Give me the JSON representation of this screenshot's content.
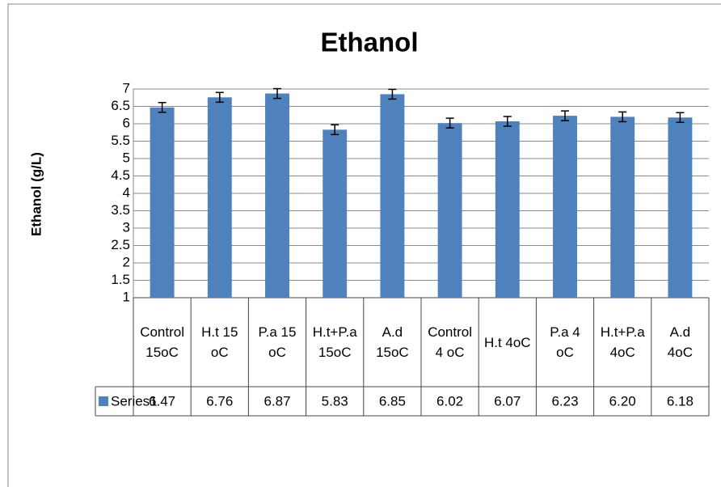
{
  "chart_data": {
    "type": "bar",
    "title": "Ethanol",
    "y_label": "Ethanol (g/L)",
    "categories": [
      "Control 15oC",
      "H.t 15 oC",
      "P.a 15 oC",
      "H.t+P.a 15oC",
      "A.d 15oC",
      "Control 4 oC",
      "H.t 4oC",
      "P.a 4 oC",
      "H.t+P.a 4oC",
      "A.d 4oC"
    ],
    "series": [
      {
        "name": "Series1",
        "color": "#4f81bd",
        "values": [
          6.47,
          6.76,
          6.87,
          5.83,
          6.85,
          6.02,
          6.07,
          6.23,
          6.2,
          6.18
        ],
        "value_labels": [
          "6.47",
          "6.76",
          "6.87",
          "5.83",
          "6.85",
          "6.02",
          "6.07",
          "6.23",
          "6.20",
          "6.18"
        ],
        "errors": [
          0.14,
          0.14,
          0.14,
          0.14,
          0.14,
          0.14,
          0.14,
          0.14,
          0.14,
          0.14
        ]
      }
    ],
    "ylim": [
      1,
      7
    ],
    "yticks": [
      1,
      1.5,
      2,
      2.5,
      3,
      3.5,
      4,
      4.5,
      5,
      5.5,
      6,
      6.5,
      7
    ],
    "grid": true
  }
}
